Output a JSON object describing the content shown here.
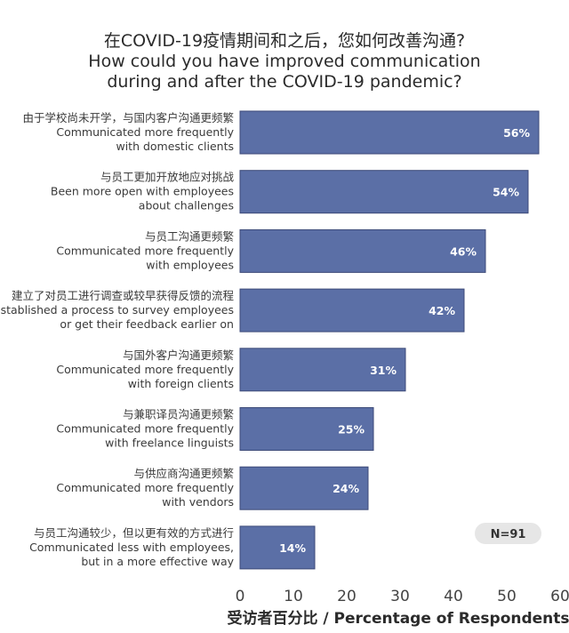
{
  "chart_data": {
    "type": "bar",
    "orientation": "horizontal",
    "title": [
      "在COVID-19疫情期间和之后，您如何改善沟通?",
      "How could you have improved communication",
      "during and after the COVID-19 pandemic?"
    ],
    "categories": [
      [
        "由于学校尚未开学，与国内客户沟通更频繁",
        "Communicated more frequently",
        "with domestic clients"
      ],
      [
        "与员工更加开放地应对挑战",
        "Been more open with employees",
        "about challenges"
      ],
      [
        "与员工沟通更频繁",
        "Communicated more frequently",
        "with employees"
      ],
      [
        "建立了对员工进行调查或较早获得反馈的流程",
        "Established a process to survey employees",
        "or get their feedback earlier on"
      ],
      [
        "与国外客户沟通更频繁",
        "Communicated more frequently",
        "with foreign clients"
      ],
      [
        "与兼职译员沟通更频繁",
        "Communicated more frequently",
        "with freelance linguists"
      ],
      [
        "与供应商沟通更频繁",
        "Communicated more frequently",
        "with vendors"
      ],
      [
        "与员工沟通较少，但以更有效的方式进行",
        "Communicated less with employees,",
        "but in a more effective way"
      ]
    ],
    "values": [
      56,
      54,
      46,
      42,
      31,
      25,
      24,
      14
    ],
    "value_labels": [
      "56%",
      "54%",
      "46%",
      "42%",
      "31%",
      "25%",
      "24%",
      "14%"
    ],
    "xlim": [
      0,
      60
    ],
    "xticks": [
      0,
      10,
      20,
      30,
      40,
      50,
      60
    ],
    "xlabel": "受访者百分比 / Percentage of Respondents",
    "annotation": "N=91",
    "bar_color": "#5b6fa6",
    "bar_border_color": "#3c4a78",
    "annotation_bg": "#e6e6e6",
    "grid": false
  }
}
